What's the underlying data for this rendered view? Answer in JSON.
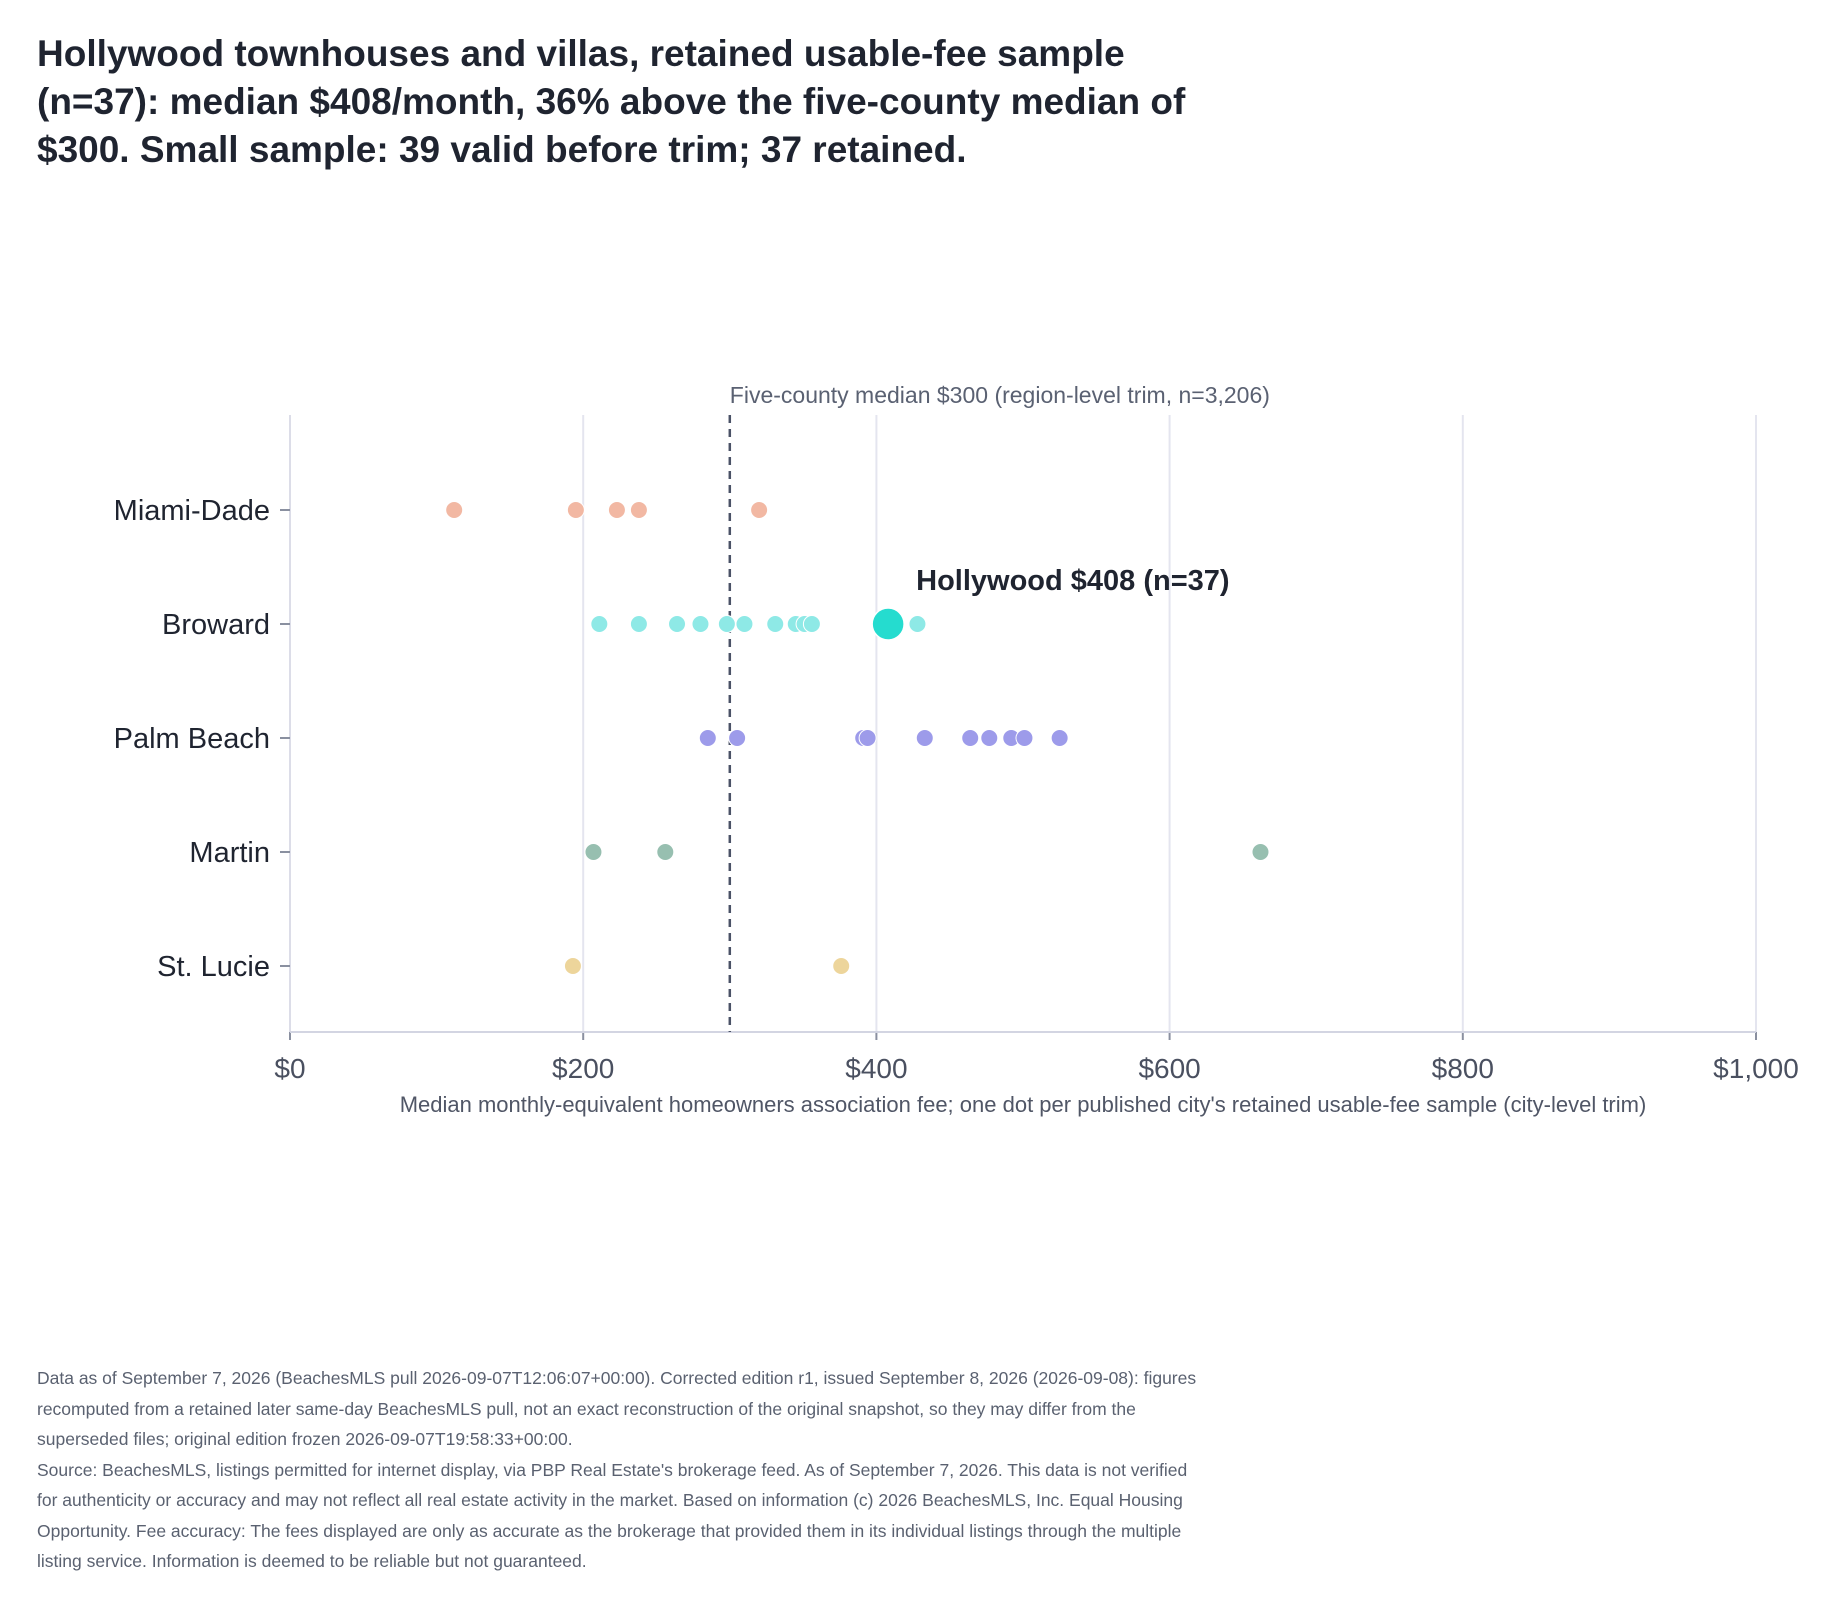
{
  "title_lines": [
    "Hollywood townhouses and villas, retained usable-fee sample",
    "(n=37): median $408/month, 36% above the five-county median of",
    "$300. Small sample: 39 valid before trim; 37 retained."
  ],
  "chart_data": {
    "type": "scatter",
    "xlabel": "Median monthly-equivalent homeowners association fee; one dot per published city's retained usable-fee sample (city-level trim)",
    "xlim": [
      0,
      1000
    ],
    "x_ticks": [
      0,
      200,
      400,
      600,
      800,
      1000
    ],
    "x_tick_labels": [
      "$0",
      "$200",
      "$400",
      "$600",
      "$800",
      "$1,000"
    ],
    "categories": [
      "Miami-Dade",
      "Broward",
      "Palm Beach",
      "Martin",
      "St. Lucie"
    ],
    "grid": "vertical",
    "reference_line": {
      "value": 300,
      "label": "Five-county median $300 (region-level trim, n=3,206)"
    },
    "series": [
      {
        "category": "Miami-Dade",
        "color": "#f2b8a3",
        "values": [
          112,
          195,
          223,
          238,
          320
        ]
      },
      {
        "category": "Broward",
        "color": "#8ee9e6",
        "values": [
          211,
          238,
          264,
          280,
          298,
          310,
          331,
          345,
          351,
          356,
          428
        ]
      },
      {
        "category": "Palm Beach",
        "color": "#9d9bea",
        "values": [
          285,
          305,
          391,
          394,
          433,
          464,
          477,
          492,
          501,
          525
        ]
      },
      {
        "category": "Martin",
        "color": "#97bfb0",
        "values": [
          207,
          256,
          662
        ]
      },
      {
        "category": "St. Lucie",
        "color": "#edd59b",
        "values": [
          193,
          376
        ]
      }
    ],
    "highlight": {
      "category": "Broward",
      "value": 408,
      "color": "#25dccf",
      "label": "Hollywood $408 (n=37)"
    }
  },
  "footnote_lines": [
    "Data as of September 7, 2026 (BeachesMLS pull 2026-09-07T12:06:07+00:00). Corrected edition r1, issued September 8, 2026 (2026-09-08): figures",
    "recomputed from a retained later same-day BeachesMLS pull, not an exact reconstruction of the original snapshot, so they may differ from the",
    "superseded files; original edition frozen 2026-09-07T19:58:33+00:00.",
    "Source: BeachesMLS, listings permitted for internet display, via PBP Real Estate's brokerage feed. As of September 7, 2026. This data is not verified",
    "for authenticity or accuracy and may not reflect all real estate activity in the market. Based on information (c) 2026 BeachesMLS, Inc. Equal Housing",
    "Opportunity. Fee accuracy: The fees displayed are only as accurate as the brokerage that provided them in its individual listings through the multiple",
    "listing service. Information is deemed to be reliable but not guaranteed."
  ]
}
